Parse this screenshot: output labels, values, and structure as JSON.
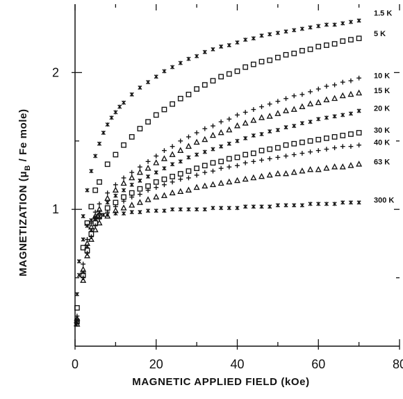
{
  "chart_data": {
    "type": "scatter",
    "title": "",
    "xlabel": "MAGNETIC   APPLIED   FIELD   (kOe)",
    "ylabel": "MAGNETIZATION   (μB / Fe mole)",
    "ylabel_parts": {
      "prefix": "MAGNETIZATION   (",
      "mu": "μ",
      "sub": "B",
      "suffix": " / Fe mole)"
    },
    "xlim": [
      0,
      80
    ],
    "ylim": [
      0,
      2.5
    ],
    "x_ticks": [
      0,
      20,
      40,
      60,
      80
    ],
    "x_tick_labels": [
      "0",
      "20",
      "40",
      "60",
      "80"
    ],
    "x_minor_ticks": [
      10,
      30,
      50,
      70
    ],
    "y_ticks": [
      1,
      2
    ],
    "y_tick_labels": [
      "1",
      "2"
    ],
    "y_minor_ticks": [
      0.5,
      1.5
    ],
    "grid": false,
    "legend": "inline-right",
    "series": [
      {
        "name": "1.5 K",
        "marker": "x",
        "x": [
          0.2,
          0.5,
          1,
          2,
          3,
          4,
          5,
          6,
          7,
          8,
          9,
          10,
          11,
          12,
          14,
          16,
          18,
          20,
          22,
          24,
          26,
          28,
          30,
          32,
          34,
          36,
          38,
          40,
          42,
          44,
          46,
          48,
          50,
          52,
          54,
          56,
          58,
          60,
          62,
          64,
          66,
          68,
          70
        ],
        "y": [
          0.16,
          0.38,
          0.62,
          0.95,
          1.14,
          1.28,
          1.39,
          1.48,
          1.56,
          1.62,
          1.67,
          1.71,
          1.75,
          1.78,
          1.84,
          1.89,
          1.93,
          1.97,
          2.01,
          2.04,
          2.07,
          2.1,
          2.12,
          2.15,
          2.17,
          2.19,
          2.2,
          2.22,
          2.24,
          2.25,
          2.27,
          2.28,
          2.29,
          2.3,
          2.31,
          2.32,
          2.33,
          2.34,
          2.35,
          2.35,
          2.36,
          2.37,
          2.38
        ]
      },
      {
        "name": "5 K",
        "marker": "square",
        "x": [
          0.5,
          2,
          3,
          4,
          5,
          6,
          8,
          10,
          12,
          14,
          16,
          18,
          20,
          22,
          24,
          26,
          28,
          30,
          32,
          34,
          36,
          38,
          40,
          42,
          44,
          46,
          48,
          50,
          52,
          54,
          56,
          58,
          60,
          62,
          64,
          66,
          68,
          70
        ],
        "y": [
          0.28,
          0.72,
          0.9,
          1.02,
          1.14,
          1.2,
          1.33,
          1.4,
          1.47,
          1.53,
          1.59,
          1.64,
          1.69,
          1.73,
          1.77,
          1.81,
          1.84,
          1.88,
          1.91,
          1.94,
          1.97,
          1.99,
          2.01,
          2.04,
          2.06,
          2.08,
          2.09,
          2.11,
          2.13,
          2.14,
          2.16,
          2.17,
          2.19,
          2.2,
          2.21,
          2.23,
          2.24,
          2.25
        ]
      },
      {
        "name": "10 K",
        "marker": "plus",
        "x": [
          0.5,
          2,
          3,
          4,
          5,
          6,
          8,
          10,
          12,
          14,
          16,
          18,
          20,
          22,
          24,
          26,
          28,
          30,
          32,
          34,
          36,
          38,
          40,
          42,
          44,
          46,
          48,
          50,
          52,
          54,
          56,
          58,
          60,
          62,
          64,
          66,
          68,
          70
        ],
        "y": [
          0.22,
          0.6,
          0.78,
          0.9,
          0.98,
          1.04,
          1.12,
          1.18,
          1.23,
          1.27,
          1.31,
          1.35,
          1.39,
          1.43,
          1.46,
          1.5,
          1.53,
          1.56,
          1.59,
          1.61,
          1.64,
          1.66,
          1.69,
          1.71,
          1.73,
          1.75,
          1.77,
          1.79,
          1.81,
          1.83,
          1.84,
          1.86,
          1.88,
          1.9,
          1.91,
          1.93,
          1.94,
          1.96
        ]
      },
      {
        "name": "15 K",
        "marker": "triangle",
        "x": [
          0.5,
          2,
          3,
          4,
          5,
          6,
          8,
          10,
          12,
          14,
          16,
          18,
          20,
          22,
          24,
          26,
          28,
          30,
          32,
          34,
          36,
          38,
          40,
          42,
          44,
          46,
          48,
          50,
          52,
          54,
          56,
          58,
          60,
          62,
          64,
          66,
          68,
          70
        ],
        "y": [
          0.2,
          0.56,
          0.75,
          0.87,
          0.95,
          1.0,
          1.08,
          1.14,
          1.19,
          1.23,
          1.27,
          1.3,
          1.34,
          1.37,
          1.4,
          1.43,
          1.46,
          1.49,
          1.51,
          1.54,
          1.56,
          1.58,
          1.61,
          1.63,
          1.65,
          1.67,
          1.68,
          1.7,
          1.72,
          1.73,
          1.75,
          1.77,
          1.78,
          1.8,
          1.81,
          1.83,
          1.84,
          1.85
        ]
      },
      {
        "name": "20 K",
        "marker": "x",
        "x": [
          0.5,
          2,
          3,
          4,
          5,
          6,
          8,
          10,
          12,
          14,
          16,
          18,
          20,
          22,
          24,
          26,
          28,
          30,
          32,
          34,
          36,
          38,
          40,
          42,
          44,
          46,
          48,
          50,
          52,
          54,
          56,
          58,
          60,
          62,
          64,
          66,
          68,
          70
        ],
        "y": [
          0.19,
          0.54,
          0.73,
          0.85,
          0.93,
          0.98,
          1.05,
          1.1,
          1.14,
          1.18,
          1.21,
          1.24,
          1.27,
          1.3,
          1.33,
          1.35,
          1.38,
          1.4,
          1.42,
          1.44,
          1.46,
          1.48,
          1.5,
          1.52,
          1.54,
          1.55,
          1.57,
          1.58,
          1.6,
          1.61,
          1.63,
          1.64,
          1.66,
          1.67,
          1.68,
          1.69,
          1.7,
          1.72
        ]
      },
      {
        "name": "30 K",
        "marker": "square",
        "x": [
          0.5,
          2,
          3,
          4,
          5,
          6,
          8,
          10,
          12,
          14,
          16,
          18,
          20,
          22,
          24,
          26,
          28,
          30,
          32,
          34,
          36,
          38,
          40,
          42,
          44,
          46,
          48,
          50,
          52,
          54,
          56,
          58,
          60,
          62,
          64,
          66,
          68,
          70
        ],
        "y": [
          0.18,
          0.52,
          0.7,
          0.82,
          0.9,
          0.95,
          1.01,
          1.05,
          1.09,
          1.12,
          1.15,
          1.17,
          1.2,
          1.22,
          1.24,
          1.26,
          1.28,
          1.3,
          1.32,
          1.34,
          1.35,
          1.37,
          1.38,
          1.4,
          1.41,
          1.43,
          1.44,
          1.45,
          1.47,
          1.48,
          1.49,
          1.5,
          1.51,
          1.52,
          1.53,
          1.54,
          1.55,
          1.56
        ]
      },
      {
        "name": "40 K",
        "marker": "plus",
        "x": [
          0.5,
          2,
          3,
          4,
          5,
          6,
          8,
          10,
          12,
          14,
          16,
          18,
          20,
          22,
          24,
          26,
          28,
          30,
          32,
          34,
          36,
          38,
          40,
          42,
          44,
          46,
          48,
          50,
          52,
          54,
          56,
          58,
          60,
          62,
          64,
          66,
          68,
          70
        ],
        "y": [
          0.17,
          0.5,
          0.68,
          0.8,
          0.88,
          0.93,
          0.98,
          1.02,
          1.06,
          1.09,
          1.11,
          1.14,
          1.16,
          1.18,
          1.2,
          1.22,
          1.23,
          1.25,
          1.27,
          1.28,
          1.3,
          1.31,
          1.32,
          1.34,
          1.35,
          1.36,
          1.37,
          1.38,
          1.39,
          1.4,
          1.41,
          1.42,
          1.43,
          1.44,
          1.45,
          1.46,
          1.46,
          1.47
        ]
      },
      {
        "name": "63 K",
        "marker": "triangle",
        "x": [
          0.5,
          2,
          3,
          4,
          5,
          6,
          8,
          10,
          12,
          14,
          16,
          18,
          20,
          22,
          24,
          26,
          28,
          30,
          32,
          34,
          36,
          38,
          40,
          42,
          44,
          46,
          48,
          50,
          52,
          54,
          56,
          58,
          60,
          62,
          64,
          66,
          68,
          70
        ],
        "y": [
          0.16,
          0.48,
          0.66,
          0.78,
          0.85,
          0.9,
          0.95,
          0.99,
          1.01,
          1.03,
          1.05,
          1.07,
          1.09,
          1.1,
          1.12,
          1.13,
          1.14,
          1.16,
          1.17,
          1.18,
          1.19,
          1.2,
          1.21,
          1.22,
          1.23,
          1.24,
          1.25,
          1.26,
          1.26,
          1.27,
          1.28,
          1.29,
          1.29,
          1.3,
          1.31,
          1.31,
          1.32,
          1.33
        ]
      },
      {
        "name": "300 K",
        "marker": "x",
        "x": [
          0.3,
          1,
          2,
          3,
          4,
          5,
          6,
          7,
          8,
          10,
          12,
          14,
          16,
          18,
          20,
          22,
          24,
          26,
          28,
          30,
          32,
          34,
          36,
          38,
          40,
          42,
          44,
          46,
          48,
          50,
          52,
          54,
          56,
          58,
          60,
          62,
          64,
          66,
          68,
          70
        ],
        "y": [
          0.18,
          0.52,
          0.78,
          0.88,
          0.92,
          0.94,
          0.95,
          0.96,
          0.96,
          0.97,
          0.97,
          0.98,
          0.98,
          0.99,
          0.99,
          0.99,
          1.0,
          1.0,
          1.0,
          1.0,
          1.0,
          1.01,
          1.01,
          1.01,
          1.01,
          1.02,
          1.02,
          1.02,
          1.02,
          1.03,
          1.03,
          1.03,
          1.03,
          1.04,
          1.04,
          1.04,
          1.04,
          1.05,
          1.05,
          1.05
        ]
      }
    ]
  }
}
